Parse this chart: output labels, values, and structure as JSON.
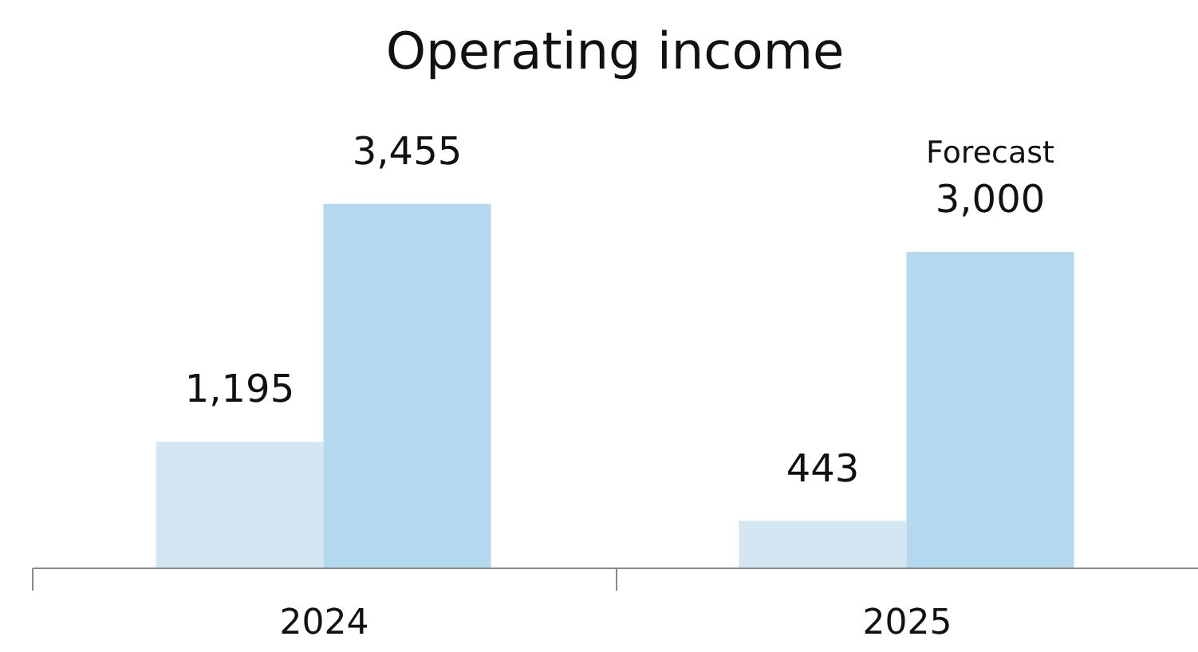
{
  "chart_data": {
    "type": "bar",
    "title": "Operating income",
    "categories": [
      "2024",
      "2025"
    ],
    "series": [
      {
        "color": "#d5e6f3",
        "values": [
          1195,
          443
        ],
        "value_labels": [
          "1,195",
          "443"
        ]
      },
      {
        "color": "#b4d8ee",
        "values": [
          3455,
          3000
        ],
        "value_labels": [
          "3,455",
          "3,000"
        ]
      }
    ],
    "annotations": [
      {
        "text": "Forecast",
        "x": "2025",
        "y": 3000
      }
    ]
  }
}
